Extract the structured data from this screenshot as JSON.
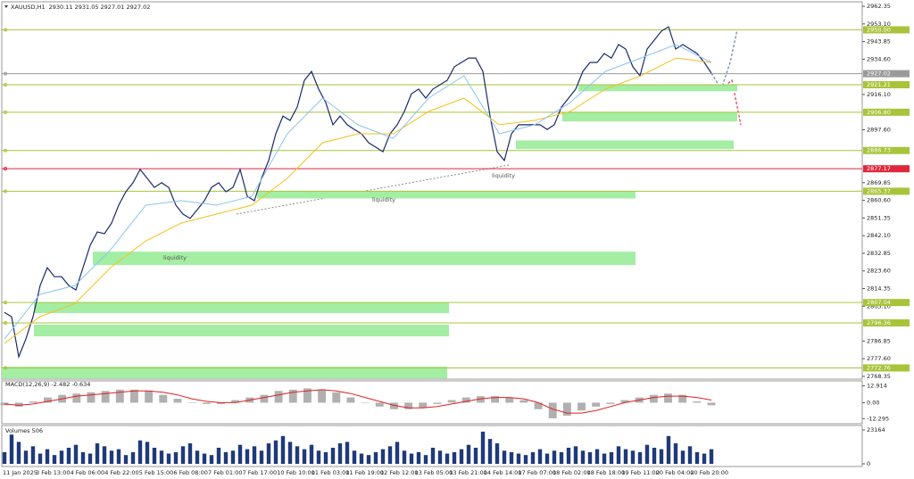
{
  "header": {
    "symbol": "XAUUSD,H1",
    "ohlc": "2930.11 2931.05 2927.01 2927.02"
  },
  "chart_data": [
    {
      "type": "line",
      "series": [
        {
          "color": "#1a2a6c",
          "values": [
            2801.9,
            2799.6,
            2778.6,
            2787.9,
            2799.6,
            2816.0,
            2825.3,
            2820.6,
            2820.6,
            2816.0,
            2813.6,
            2825.3,
            2837.0,
            2844.0,
            2843.1,
            2848.7,
            2858.1,
            2865.1,
            2869.8,
            2876.8,
            2872.1,
            2867.4,
            2869.8,
            2867.4,
            2858.1,
            2853.4,
            2851.1,
            2855.7,
            2860.4,
            2867.4,
            2869.8,
            2865.1,
            2867.4,
            2876.8,
            2862.7,
            2860.4,
            2872.1,
            2881.5,
            2895.5,
            2904.8,
            2902.5,
            2909.5,
            2923.5,
            2928.2,
            2918.9,
            2911.8,
            2900.2,
            2904.8,
            2900.2,
            2897.8,
            2895.5,
            2890.8,
            2888.5,
            2886.1,
            2895.5,
            2900.2,
            2907.2,
            2916.5,
            2918.9,
            2914.2,
            2918.9,
            2921.2,
            2923.5,
            2930.6,
            2932.9,
            2935.2,
            2935.2,
            2928.2,
            2904.8,
            2886.1,
            2881.5,
            2895.5,
            2900.2,
            2900.2,
            2900.2,
            2900.2,
            2897.8,
            2900.2,
            2909.5,
            2914.2,
            2918.9,
            2928.2,
            2932.9,
            2932.9,
            2937.6,
            2935.2,
            2942.3,
            2939.9,
            2930.6,
            2925.9,
            2939.9,
            2944.6,
            2949.3,
            2951.6,
            2939.9,
            2942.3,
            2939.9,
            2937.6,
            2932.9,
            2927.3
          ]
        },
        {
          "color": "#f2c21b",
          "values": [
            2785.6,
            2799.6,
            2806.6,
            2825.3,
            2839.4,
            2848.7,
            2853.4,
            2858.1,
            2872.1,
            2890.8,
            2895.5,
            2895.5,
            2907.2,
            2914.2,
            2900.2,
            2902.5,
            2907.2,
            2918.9,
            2925.9,
            2935.2,
            2932.9
          ]
        },
        {
          "color": "#8cc4ec",
          "values": [
            2787.9,
            2811.3,
            2816.0,
            2834.7,
            2858.1,
            2860.4,
            2858.1,
            2862.7,
            2895.5,
            2914.2,
            2900.2,
            2893.1,
            2914.2,
            2925.9,
            2895.5,
            2900.2,
            2911.8,
            2928.2,
            2935.2,
            2942.3,
            2932.9
          ]
        }
      ],
      "ylim": [
        2766.9,
        2964.7
      ],
      "yticks": [
        2962.35,
        {
          "value": 2953.1,
          "label": "2953.10"
        },
        2943.85,
        {
          "value": 2934.6,
          "label": "2934.60"
        },
        {
          "value": 2916.1,
          "label": "2916.10"
        },
        {
          "value": 2897.6,
          "label": "2897.60"
        },
        2869.85,
        {
          "value": 2860.6,
          "label": "2860.60"
        },
        2851.35,
        {
          "value": 2842.1,
          "label": "2842.10"
        },
        2832.85,
        {
          "value": 2823.6,
          "label": "2823.60"
        },
        2814.35,
        {
          "value": 2805.1,
          "label": "2805.10"
        },
        2786.85,
        {
          "value": 2777.6,
          "label": "2777.60"
        },
        2768.35
      ],
      "levels": [
        {
          "value": 2950,
          "label": "2950.00",
          "color": "#a8c43a"
        },
        {
          "value": 2927.02,
          "label": "2927.02",
          "color": "#9a9a9a"
        },
        {
          "value": 2921.21,
          "label": "2921.21",
          "color": "#a8c43a"
        },
        {
          "value": 2906.8,
          "label": "2906.80",
          "color": "#a8c43a"
        },
        {
          "value": 2886.73,
          "label": "2886.73",
          "color": "#a8c43a"
        },
        {
          "value": 2877.17,
          "label": "2877.17",
          "color": "#e0283c"
        },
        {
          "value": 2865.37,
          "label": "2865.37",
          "color": "#a8c43a"
        },
        {
          "value": 2807.04,
          "label": "2807.04",
          "color": "#a8c43a"
        },
        {
          "value": 2796.36,
          "label": "2796.36",
          "color": "#a8c43a"
        },
        {
          "value": 2772.76,
          "label": "2772.76",
          "color": "#a8c43a"
        }
      ],
      "zones": [
        {
          "low": 2917.8,
          "high": 2921.0
        },
        {
          "low": 2902.0,
          "high": 2906.8
        },
        {
          "low": 2887.5,
          "high": 2892.0
        },
        {
          "low": 2861.6,
          "high": 2865.4
        },
        {
          "low": 2826.7,
          "high": 2833.7
        },
        {
          "low": 2801.5,
          "high": 2807.1
        },
        {
          "low": 2789.3,
          "high": 2795.4
        },
        {
          "low": 2767.3,
          "high": 2773.4
        }
      ],
      "zone_color": "#a3eea3",
      "annotations": [
        "liquidity",
        "liquidity",
        "liquidity"
      ]
    },
    {
      "type": "bar",
      "title": "MACD(12,26,9) -2.482 -0.634",
      "series": [
        {
          "color": "#b0b0b0",
          "values": [
            -2,
            -3,
            1,
            4,
            6,
            7,
            8,
            9,
            10,
            10,
            9,
            6,
            3,
            0,
            -1,
            -1,
            2,
            4,
            6,
            9,
            10,
            11,
            10,
            8,
            4,
            0,
            -3,
            -5,
            -5,
            -4,
            -1,
            2,
            4,
            5,
            5,
            4,
            2,
            -5,
            -12,
            -10,
            -6,
            -3,
            -1,
            2,
            4,
            6,
            7,
            6,
            1,
            -2
          ]
        },
        {
          "type": "line",
          "color": "#e02020",
          "values": [
            -1,
            -2,
            -1,
            1,
            3,
            5,
            6,
            7,
            8,
            9,
            9,
            8,
            6,
            3,
            1,
            0,
            0,
            2,
            4,
            6,
            8,
            9,
            10,
            9,
            7,
            4,
            1,
            -2,
            -4,
            -4,
            -3,
            -1,
            1,
            3,
            4,
            4,
            3,
            0,
            -5,
            -8,
            -8,
            -6,
            -3,
            0,
            2,
            4,
            5,
            5,
            4,
            2
          ]
        }
      ],
      "ylim": [
        -14.1,
        14.7
      ],
      "yticks": [
        12.914,
        {
          "value": 0,
          "label": "0.00"
        },
        -12.295
      ]
    },
    {
      "type": "bar",
      "title": "Volumes 506",
      "series": [
        {
          "color": "#1f3a7a",
          "values": [
            8000,
            20000,
            15000,
            9000,
            12000,
            7000,
            10000,
            6000,
            9000,
            11000,
            13000,
            8000,
            7000,
            14000,
            12000,
            9000,
            10000,
            6000,
            8000,
            16000,
            15000,
            11000,
            9000,
            7000,
            8000,
            12000,
            14000,
            9000,
            7000,
            6000,
            11000,
            8000,
            9000,
            13000,
            10000,
            12000,
            9000,
            14000,
            16000,
            19000,
            15000,
            12000,
            10000,
            13000,
            9000,
            8000,
            11000,
            14000,
            15000,
            9000,
            7000,
            6000,
            8000,
            10000,
            12000,
            15000,
            9000,
            7000,
            8000,
            6000,
            11000,
            9000,
            7000,
            8000,
            10000,
            13000,
            11000,
            22000,
            17000,
            14000,
            9000,
            8000,
            7000,
            6000,
            8000,
            10000,
            7000,
            9000,
            8000,
            11000,
            12000,
            9000,
            8000,
            10000,
            7000,
            8000,
            12000,
            10000,
            9000,
            8000,
            13000,
            11000,
            10000,
            19000,
            14000,
            9000,
            12000,
            8000,
            7000,
            10000
          ]
        }
      ],
      "ylim": [
        0,
        23164
      ],
      "yticks": [
        23164,
        0
      ],
      "x_labels": [
        "11 Jan 2025",
        "3 Feb 13:00",
        "4 Feb 06:00",
        "4 Feb 22:00",
        "5 Feb 15:00",
        "6 Feb 08:00",
        "7 Feb 01:00",
        "7 Feb 17:00",
        "10 Feb 10:00",
        "11 Feb 03:00",
        "11 Feb 19:00",
        "12 Feb 12:00",
        "13 Feb 05:00",
        "13 Feb 21:00",
        "14 Feb 14:00",
        "17 Feb 07:00",
        "18 Feb 02:00",
        "18 Feb 18:00",
        "19 Feb 11:00",
        "20 Feb 04:00",
        "20 Feb 20:00"
      ]
    }
  ]
}
